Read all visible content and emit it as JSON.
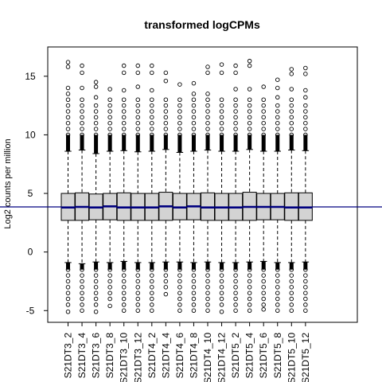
{
  "chart_data": {
    "type": "boxplot",
    "title": "transformed logCPMs",
    "xlabel": "",
    "ylabel": "Log2 counts per million",
    "ylim": [
      -6,
      17.5
    ],
    "yticks": [
      -5,
      0,
      5,
      10,
      15
    ],
    "reference_line": {
      "value": 3.85,
      "color": "#000080"
    },
    "box_fill": "#d3d3d3",
    "median_color": "#000080",
    "categories": [
      "S21DT3_2",
      "S21DT3_4",
      "S21DT3_6",
      "S21DT3_8",
      "S21DT3_10",
      "S21DT3_12",
      "S21DT4_2",
      "S21DT4_4",
      "S21DT4_6",
      "S21DT4_8",
      "S21DT4_10",
      "S21DT4_12",
      "S21DT5_2",
      "S21DT5_4",
      "S21DT5_6",
      "S21DT5_8",
      "S21DT5_10",
      "S21DT5_12"
    ],
    "series": [
      {
        "q1": [
          2.7,
          2.7,
          2.75,
          2.75,
          2.7,
          2.7,
          2.7,
          2.7,
          2.75,
          2.75,
          2.7,
          2.7,
          2.7,
          2.7,
          2.75,
          2.75,
          2.7,
          2.7
        ],
        "median": [
          3.8,
          3.85,
          3.8,
          3.9,
          3.8,
          3.8,
          3.8,
          3.9,
          3.8,
          3.9,
          3.8,
          3.8,
          3.8,
          3.85,
          3.85,
          3.85,
          3.8,
          3.8
        ],
        "q3": [
          5.0,
          5.05,
          4.95,
          5.0,
          5.05,
          5.0,
          5.0,
          5.1,
          5.0,
          5.0,
          5.05,
          5.0,
          5.0,
          5.1,
          5.0,
          5.0,
          5.05,
          5.05
        ],
        "whisker_low": [
          -0.9,
          -1.0,
          -0.85,
          -0.9,
          -0.8,
          -0.9,
          -0.9,
          -0.85,
          -0.85,
          -0.9,
          -0.85,
          -0.9,
          -0.9,
          -0.85,
          -0.8,
          -0.9,
          -0.9,
          -0.85
        ],
        "whisker_high": [
          8.6,
          8.7,
          8.4,
          8.6,
          8.65,
          8.55,
          8.6,
          8.75,
          8.5,
          8.6,
          8.7,
          8.6,
          8.6,
          8.75,
          8.6,
          8.6,
          8.7,
          8.65
        ],
        "outliers_high": [
          [
            10.0,
            10.5,
            11.0,
            11.5,
            12.0,
            12.5,
            13.0,
            13.5,
            14.0,
            15.8,
            16.2
          ],
          [
            10.0,
            10.5,
            11.0,
            11.5,
            12.0,
            12.5,
            13.0,
            14.0,
            15.3,
            15.9
          ],
          [
            10.0,
            10.5,
            11.0,
            11.5,
            12.0,
            12.5,
            13.2,
            14.1,
            14.5
          ],
          [
            10.0,
            10.5,
            11.0,
            11.5,
            12.0,
            12.5,
            13.0,
            13.9
          ],
          [
            10.0,
            10.5,
            11.0,
            11.5,
            12.0,
            12.5,
            13.0,
            13.8,
            15.3,
            15.9
          ],
          [
            10.0,
            10.5,
            11.0,
            11.5,
            12.0,
            12.5,
            13.0,
            14.1,
            15.3,
            15.9
          ],
          [
            10.0,
            10.5,
            11.0,
            11.5,
            12.0,
            12.5,
            13.0,
            13.8,
            15.3,
            15.9
          ],
          [
            10.0,
            10.5,
            11.0,
            11.5,
            12.0,
            12.5,
            13.0,
            14.6,
            15.3
          ],
          [
            10.0,
            10.5,
            11.0,
            11.5,
            12.0,
            12.5,
            13.0,
            14.3
          ],
          [
            10.0,
            10.5,
            11.0,
            11.5,
            12.0,
            12.5,
            13.0,
            13.5,
            14.4
          ],
          [
            10.0,
            10.5,
            11.0,
            11.5,
            12.0,
            12.5,
            13.0,
            13.5,
            15.3,
            15.8
          ],
          [
            10.0,
            10.5,
            11.0,
            11.5,
            12.0,
            12.5,
            13.0,
            15.3,
            16.0
          ],
          [
            10.0,
            10.5,
            11.0,
            11.5,
            12.0,
            12.5,
            13.0,
            13.9,
            15.3,
            15.9
          ],
          [
            10.0,
            10.5,
            11.0,
            11.5,
            12.0,
            12.5,
            13.0,
            13.9,
            15.9,
            16.3
          ],
          [
            10.0,
            10.5,
            11.0,
            11.5,
            12.0,
            12.5,
            13.0,
            14.1
          ],
          [
            10.0,
            10.5,
            11.0,
            11.5,
            12.0,
            12.5,
            13.2,
            14.0,
            14.7
          ],
          [
            10.0,
            10.5,
            11.0,
            11.5,
            12.0,
            12.5,
            13.0,
            13.9,
            15.2,
            15.6
          ],
          [
            10.0,
            10.5,
            11.0,
            11.5,
            12.0,
            12.5,
            13.2,
            13.8,
            15.2,
            15.7
          ]
        ],
        "outliers_low": [
          [
            -1.5,
            -2.0,
            -2.5,
            -3.0,
            -3.5,
            -4.0,
            -4.5,
            -5.1
          ],
          [
            -1.5,
            -2.0,
            -2.5,
            -3.0,
            -3.5,
            -4.0,
            -4.5,
            -5.0
          ],
          [
            -1.5,
            -2.0,
            -2.5,
            -3.0,
            -3.5,
            -4.0,
            -4.5,
            -5.1
          ],
          [
            -1.5,
            -2.0,
            -2.5,
            -3.0,
            -3.5,
            -4.0,
            -4.6
          ],
          [
            -1.5,
            -2.0,
            -2.5,
            -3.0,
            -3.5,
            -4.0,
            -4.5,
            -5.0
          ],
          [
            -1.5,
            -2.0,
            -2.5,
            -3.0,
            -3.5,
            -4.0,
            -4.5,
            -5.0
          ],
          [
            -1.5,
            -2.0,
            -2.5,
            -3.0,
            -3.5,
            -4.0,
            -4.5,
            -5.0
          ],
          [
            -1.5,
            -2.0,
            -2.5,
            -3.0,
            -3.6
          ],
          [
            -1.5,
            -2.0,
            -2.5,
            -3.0,
            -3.5,
            -4.0,
            -4.5,
            -5.0
          ],
          [
            -1.5,
            -2.0,
            -2.5,
            -3.0,
            -3.5,
            -4.0,
            -4.5,
            -5.0
          ],
          [
            -1.5,
            -2.0,
            -2.5,
            -3.0,
            -3.5,
            -4.0,
            -4.5,
            -5.0
          ],
          [
            -1.5,
            -2.0,
            -2.5,
            -3.0,
            -3.5,
            -4.0,
            -4.5,
            -5.1
          ],
          [
            -1.5,
            -2.0,
            -2.5,
            -3.0,
            -3.5,
            -4.0,
            -4.5,
            -5.0
          ],
          [
            -1.5,
            -2.0,
            -2.5,
            -3.0,
            -3.5,
            -4.0,
            -4.5,
            -5.0
          ],
          [
            -1.5,
            -2.0,
            -2.5,
            -3.0,
            -3.5,
            -4.0,
            -4.5,
            -4.9
          ],
          [
            -1.5,
            -2.0,
            -2.5,
            -3.0,
            -3.5,
            -4.0,
            -4.5,
            -5.0
          ],
          [
            -1.5,
            -2.0,
            -2.5,
            -3.0,
            -3.5,
            -4.0,
            -4.5,
            -5.0
          ],
          [
            -1.5,
            -2.0,
            -2.5,
            -3.0,
            -3.5,
            -4.0,
            -4.5,
            -5.0
          ]
        ]
      }
    ],
    "grid": false,
    "legend": "none"
  }
}
